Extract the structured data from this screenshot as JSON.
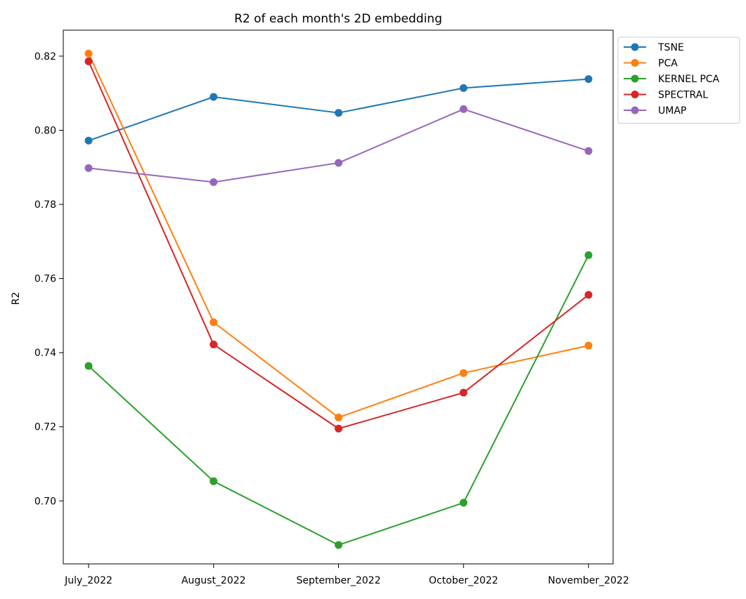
{
  "chart_data": {
    "type": "line",
    "title": "R2 of each month's 2D embedding",
    "xlabel": "",
    "ylabel": "R2",
    "categories": [
      "July_2022",
      "August_2022",
      "September_2022",
      "October_2022",
      "November_2022"
    ],
    "ylim": [
      0.683,
      0.827
    ],
    "yticks": [
      0.7,
      0.72,
      0.74,
      0.76,
      0.78,
      0.8,
      0.82
    ],
    "ytick_labels": [
      "0.70",
      "0.72",
      "0.74",
      "0.76",
      "0.78",
      "0.80",
      "0.82"
    ],
    "grid": false,
    "legend_position": "outside-top-right",
    "markers": "circle",
    "series": [
      {
        "name": "TSNE",
        "color": "#1f77b4",
        "values": [
          0.7972,
          0.809,
          0.8047,
          0.8114,
          0.8138
        ]
      },
      {
        "name": "PCA",
        "color": "#ff7f0e",
        "values": [
          0.8207,
          0.7482,
          0.7225,
          0.7345,
          0.7419
        ]
      },
      {
        "name": "KERNEL PCA",
        "color": "#2ca02c",
        "values": [
          0.7364,
          0.7053,
          0.6881,
          0.6995,
          0.7663
        ]
      },
      {
        "name": "SPECTRAL",
        "color": "#d62728",
        "values": [
          0.8186,
          0.7422,
          0.7195,
          0.7292,
          0.7556
        ]
      },
      {
        "name": "UMAP",
        "color": "#9467bd",
        "values": [
          0.7898,
          0.786,
          0.7912,
          0.8057,
          0.7944
        ]
      }
    ]
  }
}
